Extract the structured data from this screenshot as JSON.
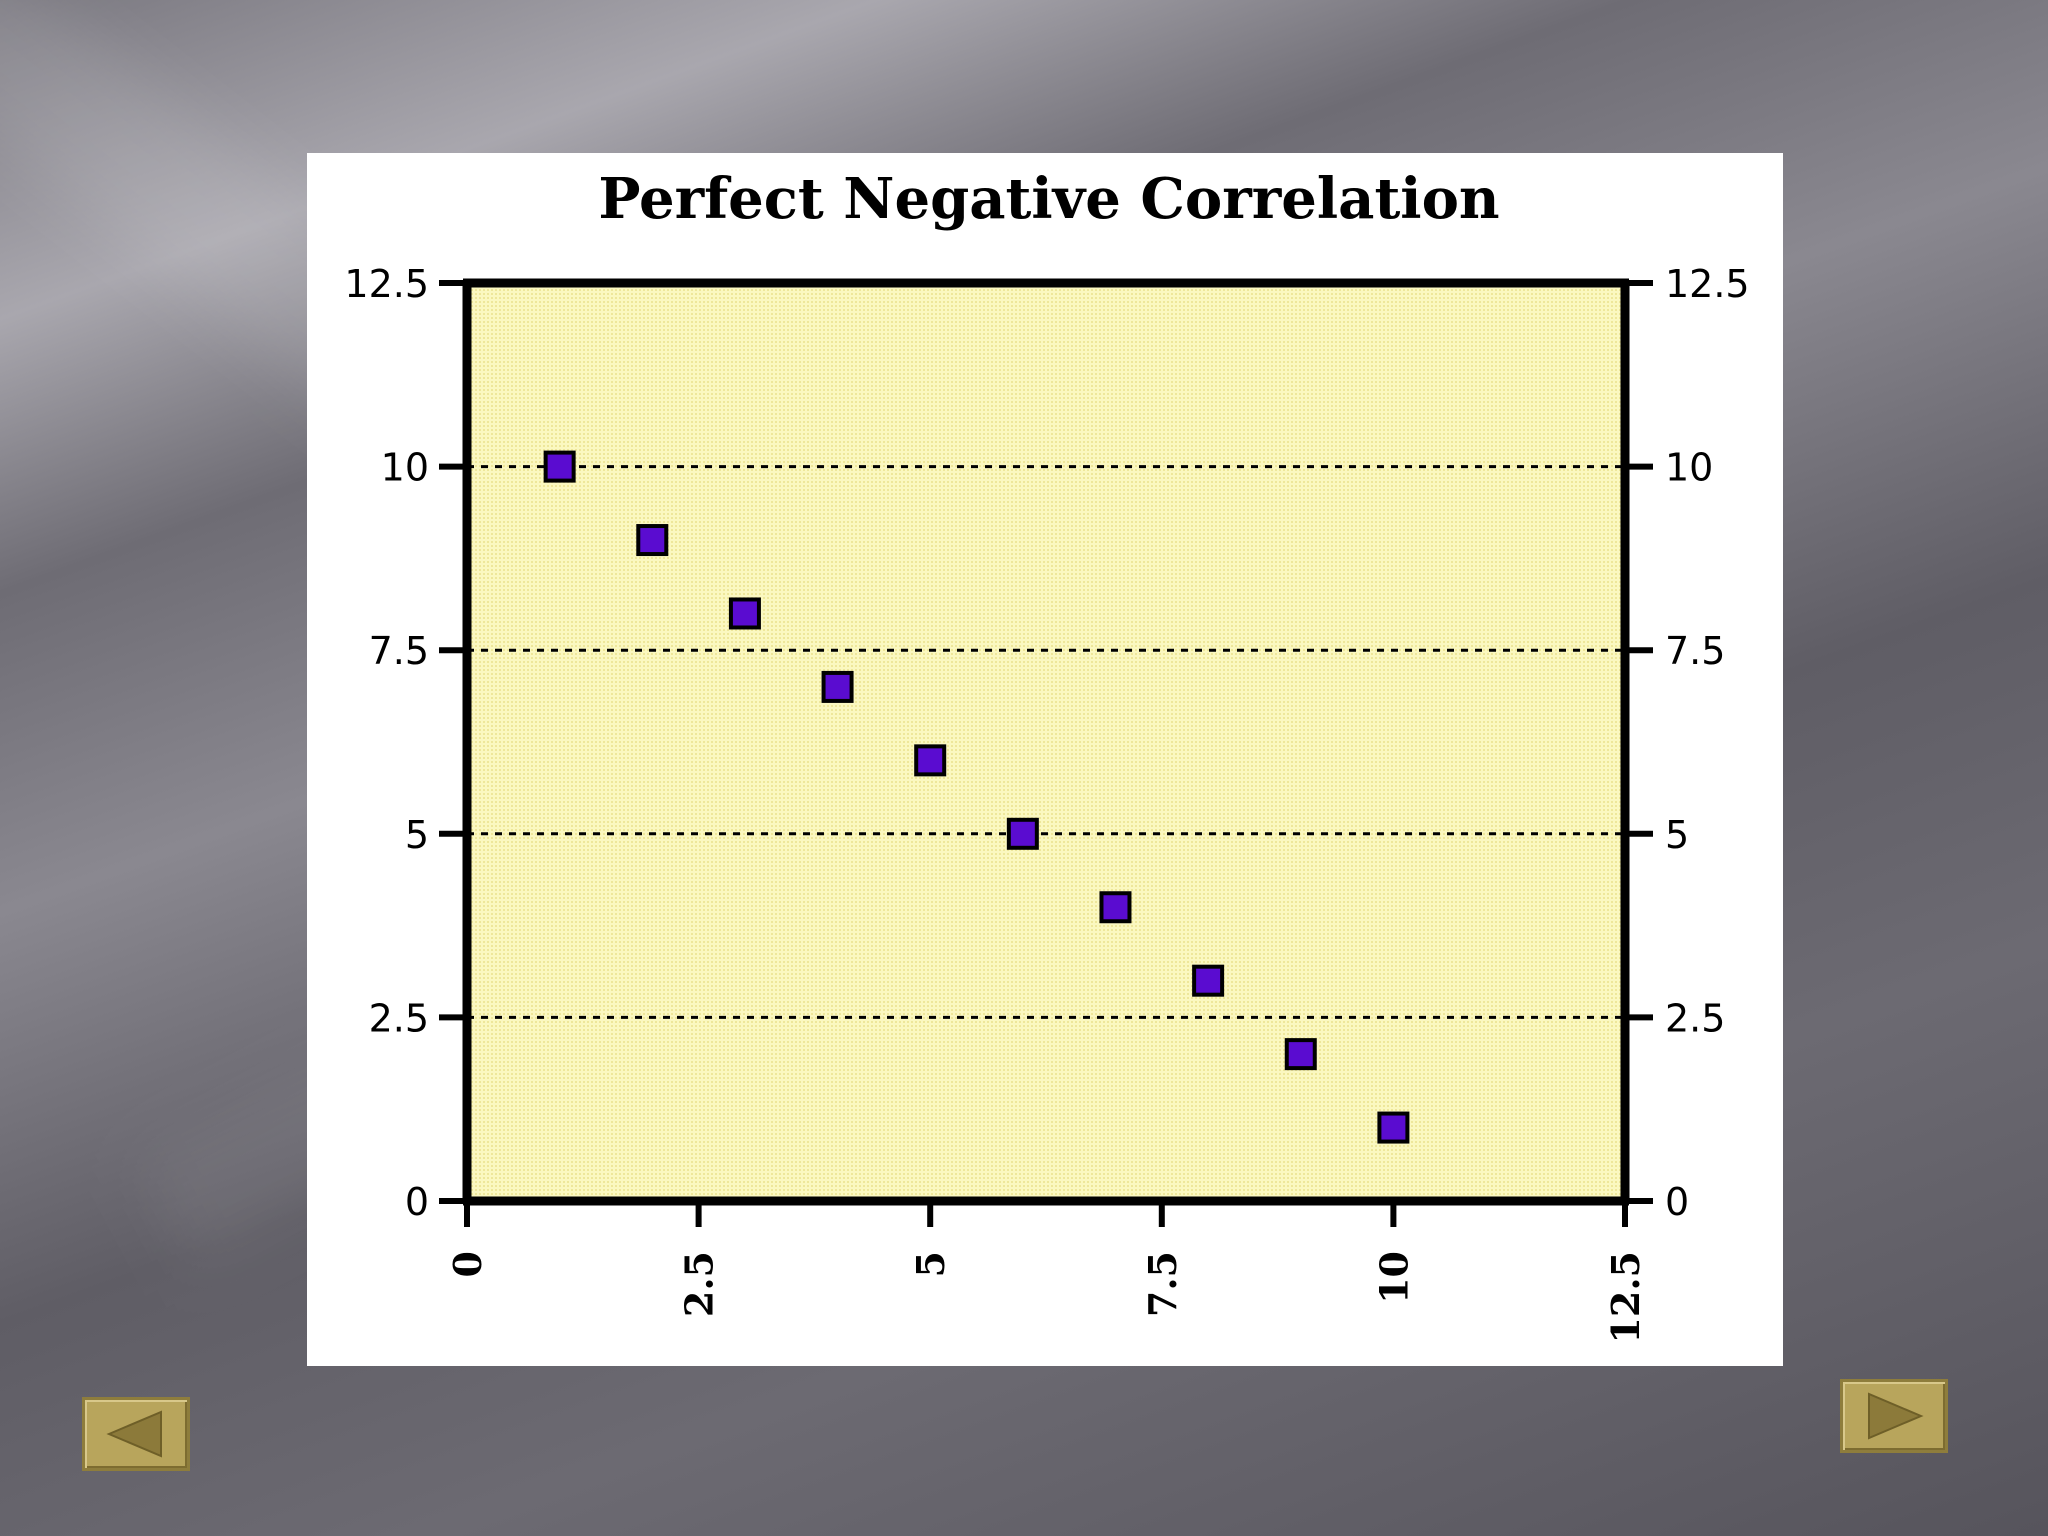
{
  "chart_data": {
    "type": "scatter",
    "title": "Perfect Negative Correlation",
    "xlabel": "",
    "ylabel": "",
    "xlim": [
      0,
      12.5
    ],
    "ylim": [
      0,
      12.5
    ],
    "x_ticks": [
      "0",
      "2.5",
      "5",
      "7.5",
      "10",
      "12.5"
    ],
    "y_ticks": [
      "0",
      "2.5",
      "5",
      "7.5",
      "10",
      "12.5"
    ],
    "grid": "horizontal dashed",
    "points": [
      {
        "x": 1,
        "y": 10
      },
      {
        "x": 2,
        "y": 9
      },
      {
        "x": 3,
        "y": 8
      },
      {
        "x": 4,
        "y": 7
      },
      {
        "x": 5,
        "y": 6
      },
      {
        "x": 6,
        "y": 5
      },
      {
        "x": 7,
        "y": 4
      },
      {
        "x": 8,
        "y": 3
      },
      {
        "x": 9,
        "y": 2
      },
      {
        "x": 10,
        "y": 1
      }
    ],
    "colors": {
      "plot_background": "#fbf7b4",
      "marker_fill": "#5a0cd0",
      "marker_stroke": "#000000"
    }
  },
  "navigation": {
    "prev_icon": "triangle-left-icon",
    "next_icon": "triangle-right-icon",
    "button_color": "#b8a55c",
    "arrow_color": "#8c7a3a"
  }
}
